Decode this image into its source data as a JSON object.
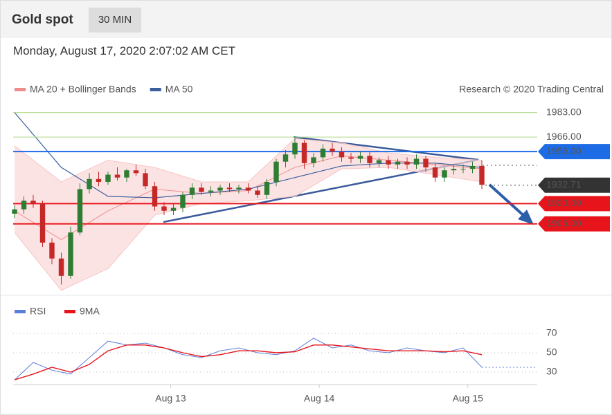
{
  "header": {
    "title": "Gold spot",
    "timeframe": "30 MIN",
    "date": "Monday, August 17, 2020 2:07:02 AM CET"
  },
  "chart_data": [
    {
      "type": "candlestick",
      "legend": [
        {
          "name": "MA 20 + Bollinger Bands",
          "color": "#f08c8c"
        },
        {
          "name": "MA 50",
          "color": "#3a5f9e"
        }
      ],
      "credit": "Research © 2020 Trading Central",
      "xlim": [
        0,
        50
      ],
      "xticks": [
        {
          "value": 16.7,
          "label": "Aug 13"
        },
        {
          "value": 32.6,
          "label": "Aug 14"
        },
        {
          "value": 48.5,
          "label": "Aug 15"
        }
      ],
      "ylim": [
        1857,
        1990
      ],
      "up_color": "#2e7d32",
      "down_color": "#c62828",
      "open": [
        1913,
        1916,
        1922,
        1920,
        1893,
        1882,
        1870,
        1900,
        1930,
        1937,
        1935,
        1940,
        1938,
        1943,
        1941,
        1932,
        1918,
        1915,
        1917,
        1926,
        1931,
        1928,
        1929,
        1931,
        1930,
        1931,
        1929,
        1926,
        1935,
        1949,
        1954,
        1962,
        1948,
        1952,
        1958,
        1956,
        1952,
        1951,
        1953,
        1948,
        1950,
        1947,
        1949,
        1947,
        1951,
        1945,
        1938,
        1943,
        1944,
        1944,
        1946
      ],
      "high": [
        1919,
        1925,
        1926,
        1922,
        1896,
        1886,
        1904,
        1934,
        1941,
        1942,
        1942,
        1945,
        1944,
        1947,
        1944,
        1935,
        1921,
        1920,
        1928,
        1934,
        1934,
        1932,
        1933,
        1934,
        1933,
        1934,
        1932,
        1937,
        1951,
        1957,
        1966,
        1964,
        1955,
        1961,
        1962,
        1959,
        1955,
        1956,
        1956,
        1952,
        1953,
        1951,
        1952,
        1954,
        1953,
        1948,
        1945,
        1947,
        1947,
        1949,
        1950
      ],
      "low": [
        1910,
        1913,
        1917,
        1890,
        1878,
        1864,
        1868,
        1898,
        1927,
        1932,
        1933,
        1936,
        1935,
        1939,
        1930,
        1915,
        1912,
        1912,
        1914,
        1923,
        1926,
        1925,
        1926,
        1928,
        1927,
        1927,
        1924,
        1923,
        1932,
        1945,
        1951,
        1944,
        1945,
        1949,
        1953,
        1949,
        1948,
        1948,
        1945,
        1945,
        1944,
        1944,
        1944,
        1944,
        1942,
        1935,
        1935,
        1940,
        1941,
        1941,
        1930
      ],
      "close": [
        1916,
        1922,
        1920,
        1893,
        1882,
        1870,
        1900,
        1930,
        1937,
        1935,
        1940,
        1938,
        1943,
        1941,
        1932,
        1918,
        1915,
        1917,
        1926,
        1931,
        1928,
        1929,
        1931,
        1930,
        1931,
        1929,
        1926,
        1935,
        1949,
        1954,
        1962,
        1948,
        1952,
        1958,
        1956,
        1952,
        1951,
        1953,
        1948,
        1950,
        1947,
        1949,
        1947,
        1951,
        1945,
        1938,
        1943,
        1944,
        1944,
        1946,
        1933
      ],
      "indicators": {
        "x": [
          0,
          5,
          10,
          15,
          20,
          25,
          30,
          35,
          40,
          45,
          50
        ],
        "ma20": [
          1915,
          1895,
          1915,
          1930,
          1927,
          1929,
          1945,
          1953,
          1950,
          1947,
          1944
        ],
        "ma50": [
          1983,
          1945,
          1925,
          1924,
          1927,
          1930,
          1938,
          1946,
          1948,
          1948,
          1945
        ],
        "upper": [
          1960,
          1935,
          1950,
          1945,
          1935,
          1935,
          1965,
          1962,
          1955,
          1952,
          1950
        ],
        "lower": [
          1900,
          1860,
          1875,
          1912,
          1920,
          1922,
          1925,
          1944,
          1945,
          1940,
          1935
        ]
      },
      "levels": [
        {
          "value": 1983,
          "label": "1983.00",
          "color": "#b5dd8f",
          "text_color": "#5aa02c",
          "tag": false
        },
        {
          "value": 1966,
          "label": "1966.00",
          "color": "#b5dd8f",
          "text_color": "#5aa02c",
          "tag": false
        },
        {
          "value": 1956,
          "label": "1956.00",
          "color": "#1e6be6",
          "text_color": "#ffffff",
          "tag": true
        },
        {
          "value": 1932.71,
          "label": "1932.71",
          "color": "#333333",
          "text_color": "#ffffff",
          "tag": true,
          "dotted": true
        },
        {
          "value": 1920,
          "label": "1920.00",
          "color": "#e8141b",
          "text_color": "#ffffff",
          "tag": true
        },
        {
          "value": 1906,
          "label": "1906.00",
          "color": "#e8141b",
          "text_color": "#ffffff",
          "tag": true
        }
      ]
    },
    {
      "type": "line",
      "x": [
        0,
        2,
        4,
        6,
        8,
        10,
        12,
        14,
        16,
        18,
        20,
        22,
        24,
        26,
        28,
        30,
        32,
        34,
        36,
        38,
        40,
        42,
        44,
        46,
        48,
        50
      ],
      "xlim": [
        0,
        50
      ],
      "ylim": [
        20,
        80
      ],
      "yticks": [
        30,
        50,
        70
      ],
      "series": [
        {
          "name": "RSI",
          "color": "#5b7fd6",
          "values": [
            22,
            40,
            32,
            28,
            45,
            62,
            58,
            60,
            55,
            48,
            45,
            52,
            55,
            50,
            48,
            52,
            65,
            55,
            58,
            52,
            50,
            55,
            52,
            50,
            55,
            35
          ]
        },
        {
          "name": "9MA",
          "color": "#e8141b",
          "values": [
            22,
            28,
            35,
            30,
            38,
            52,
            58,
            58,
            55,
            50,
            46,
            48,
            52,
            52,
            50,
            51,
            58,
            58,
            56,
            54,
            52,
            52,
            52,
            51,
            52,
            48
          ]
        }
      ]
    }
  ]
}
